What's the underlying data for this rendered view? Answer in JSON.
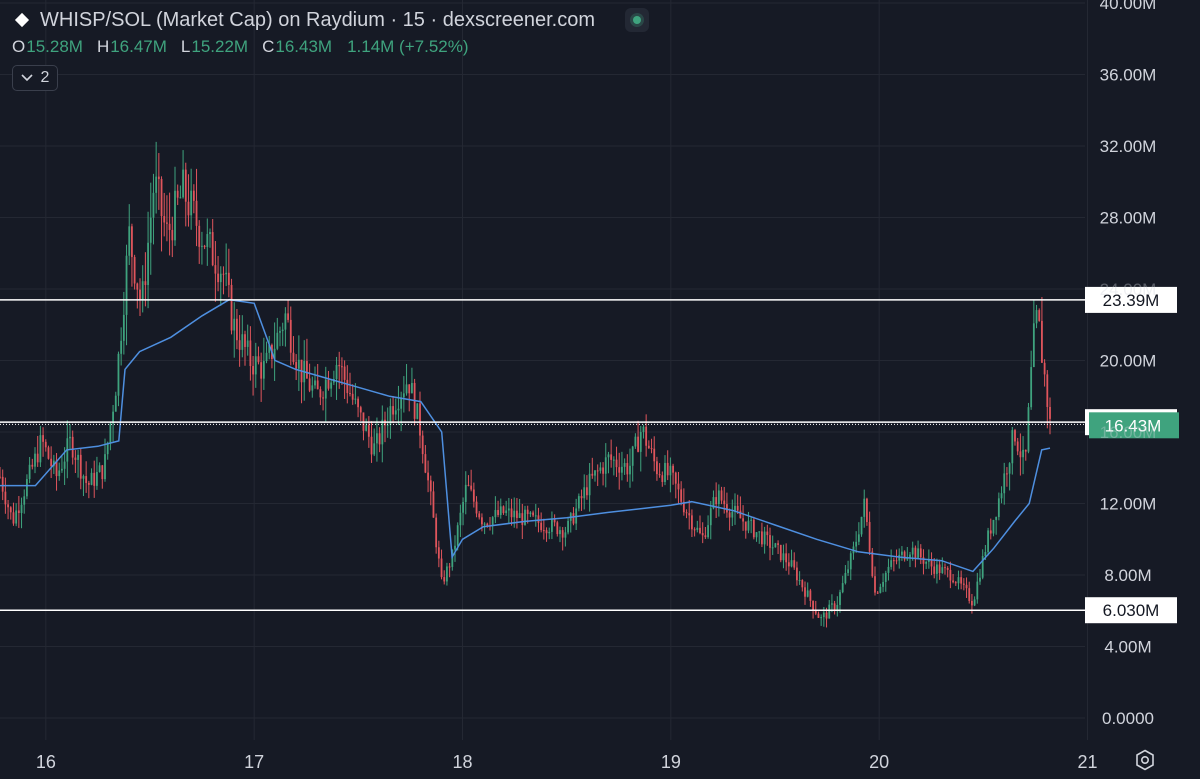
{
  "header": {
    "title": "WHISP/SOL (Market Cap) on Raydium · 15 · dexscreener.com",
    "open_label": "O",
    "open_value": "15.28M",
    "high_label": "H",
    "high_value": "16.47M",
    "low_label": "L",
    "low_value": "15.22M",
    "close_label": "C",
    "close_value": "16.43M",
    "change_value": "1.14M (+7.52%)",
    "indicator_count": "2"
  },
  "colors": {
    "background": "#161a25",
    "up": "#3fa37e",
    "down": "#e0555c",
    "ma": "#4e8fe0",
    "grid": "#242833",
    "level_line": "#ffffff",
    "last_price_badge": "#3fa37e"
  },
  "icons": {
    "logo": "diamond-logo-icon",
    "live": "live-dot-icon",
    "collapse": "chevron-down-icon",
    "settings": "settings-icon"
  },
  "chart_data": {
    "type": "candlestick",
    "ylim": [
      0,
      40
    ],
    "yunit": "M",
    "y_ticks": [
      {
        "value": 40,
        "label": "40.00M"
      },
      {
        "value": 36,
        "label": "36.00M"
      },
      {
        "value": 32,
        "label": "32.00M"
      },
      {
        "value": 28,
        "label": "28.00M"
      },
      {
        "value": 24,
        "label": "24.00M"
      },
      {
        "value": 20,
        "label": "20.00M"
      },
      {
        "value": 16,
        "label": "16.00M"
      },
      {
        "value": 12,
        "label": "12.00M"
      },
      {
        "value": 8,
        "label": "8.00M"
      },
      {
        "value": 4,
        "label": "4.00M"
      },
      {
        "value": 0,
        "label": "0.0000"
      }
    ],
    "xlim": [
      15.78,
      21.54
    ],
    "x_ticks": [
      {
        "value": 16,
        "label": "16"
      },
      {
        "value": 17,
        "label": "17"
      },
      {
        "value": 18,
        "label": "18"
      },
      {
        "value": 19,
        "label": "19"
      },
      {
        "value": 20,
        "label": "20"
      },
      {
        "value": 21,
        "label": "21"
      }
    ],
    "horizontal_levels": [
      {
        "value": 23.39,
        "label": "23.39M",
        "style": "solid"
      },
      {
        "value": 6.03,
        "label": "6.030M",
        "style": "solid"
      },
      {
        "value": 16.55,
        "label": "16.55M",
        "style": "solid"
      }
    ],
    "last_price": {
      "value": 16.43,
      "label": "16.43M"
    },
    "price_path": [
      [
        15.78,
        13.5
      ],
      [
        15.84,
        11.0
      ],
      [
        15.92,
        13.5
      ],
      [
        15.98,
        15.5
      ],
      [
        16.05,
        13.5
      ],
      [
        16.12,
        15.5
      ],
      [
        16.2,
        13.0
      ],
      [
        16.28,
        14.0
      ],
      [
        16.34,
        19.0
      ],
      [
        16.4,
        27.0
      ],
      [
        16.46,
        23.0
      ],
      [
        16.52,
        30.0
      ],
      [
        16.58,
        27.0
      ],
      [
        16.66,
        29.5
      ],
      [
        16.75,
        27.0
      ],
      [
        16.85,
        25.0
      ],
      [
        16.9,
        22.0
      ],
      [
        16.98,
        20.0
      ],
      [
        17.05,
        19.5
      ],
      [
        17.15,
        22.5
      ],
      [
        17.22,
        19.5
      ],
      [
        17.3,
        18.0
      ],
      [
        17.4,
        20.0
      ],
      [
        17.5,
        17.0
      ],
      [
        17.58,
        15.0
      ],
      [
        17.66,
        17.5
      ],
      [
        17.74,
        19.0
      ],
      [
        17.8,
        16.0
      ],
      [
        17.85,
        12.0
      ],
      [
        17.9,
        7.5
      ],
      [
        17.95,
        9.0
      ],
      [
        18.02,
        13.0
      ],
      [
        18.1,
        11.0
      ],
      [
        18.2,
        11.5
      ],
      [
        18.35,
        11.0
      ],
      [
        18.5,
        10.5
      ],
      [
        18.6,
        13.0
      ],
      [
        18.7,
        14.5
      ],
      [
        18.8,
        14.0
      ],
      [
        18.86,
        16.2
      ],
      [
        18.93,
        14.0
      ],
      [
        19.0,
        13.5
      ],
      [
        19.08,
        11.5
      ],
      [
        19.15,
        10.0
      ],
      [
        19.22,
        12.5
      ],
      [
        19.3,
        11.5
      ],
      [
        19.4,
        10.5
      ],
      [
        19.5,
        9.5
      ],
      [
        19.58,
        8.5
      ],
      [
        19.65,
        7.0
      ],
      [
        19.72,
        5.5
      ],
      [
        19.8,
        6.5
      ],
      [
        19.88,
        9.5
      ],
      [
        19.93,
        12.0
      ],
      [
        19.98,
        7.0
      ],
      [
        20.05,
        8.5
      ],
      [
        20.15,
        9.5
      ],
      [
        20.25,
        8.5
      ],
      [
        20.35,
        8.0
      ],
      [
        20.45,
        6.5
      ],
      [
        20.52,
        10.0
      ],
      [
        20.58,
        12.5
      ],
      [
        20.65,
        16.0
      ],
      [
        20.7,
        14.0
      ],
      [
        20.74,
        21.0
      ],
      [
        20.76,
        22.5
      ],
      [
        20.8,
        18.5
      ],
      [
        20.82,
        16.43
      ]
    ],
    "ma_path": [
      [
        15.78,
        13.0
      ],
      [
        15.95,
        13.0
      ],
      [
        16.1,
        15.0
      ],
      [
        16.25,
        15.2
      ],
      [
        16.35,
        15.5
      ],
      [
        16.38,
        19.5
      ],
      [
        16.45,
        20.5
      ],
      [
        16.6,
        21.3
      ],
      [
        16.75,
        22.5
      ],
      [
        16.88,
        23.4
      ],
      [
        17.0,
        23.2
      ],
      [
        17.1,
        20.0
      ],
      [
        17.2,
        19.5
      ],
      [
        17.35,
        19.0
      ],
      [
        17.5,
        18.5
      ],
      [
        17.65,
        18.0
      ],
      [
        17.8,
        17.7
      ],
      [
        17.9,
        16.0
      ],
      [
        17.95,
        9.0
      ],
      [
        18.0,
        10.0
      ],
      [
        18.1,
        10.7
      ],
      [
        18.3,
        11.0
      ],
      [
        18.5,
        11.2
      ],
      [
        18.7,
        11.5
      ],
      [
        19.0,
        11.9
      ],
      [
        19.1,
        12.1
      ],
      [
        19.3,
        11.6
      ],
      [
        19.5,
        10.8
      ],
      [
        19.7,
        10.0
      ],
      [
        19.9,
        9.3
      ],
      [
        20.1,
        9.0
      ],
      [
        20.3,
        8.8
      ],
      [
        20.45,
        8.2
      ],
      [
        20.55,
        9.5
      ],
      [
        20.65,
        11.0
      ],
      [
        20.72,
        12.0
      ],
      [
        20.78,
        15.0
      ],
      [
        20.82,
        15.1
      ]
    ]
  }
}
